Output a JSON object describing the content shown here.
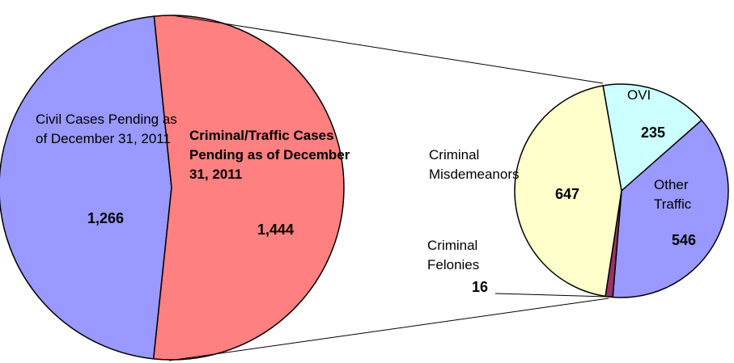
{
  "chart_data": [
    {
      "type": "pie",
      "categories": [
        "Civil Cases Pending as of December 31, 2011",
        "Criminal/Traffic Cases Pending as of December 31, 2011"
      ],
      "values": [
        1266,
        1444
      ],
      "value_labels": [
        "1,266",
        "1,444"
      ],
      "colors": [
        "#9999ff",
        "#ff8080"
      ]
    },
    {
      "type": "pie",
      "categories": [
        "OVI",
        "Other Traffic",
        "Criminal Felonies",
        "Criminal Misdemeanors"
      ],
      "values": [
        235,
        546,
        16,
        647
      ],
      "colors": [
        "#ccffff",
        "#9999ff",
        "#993366",
        "#ffffcc"
      ]
    }
  ]
}
